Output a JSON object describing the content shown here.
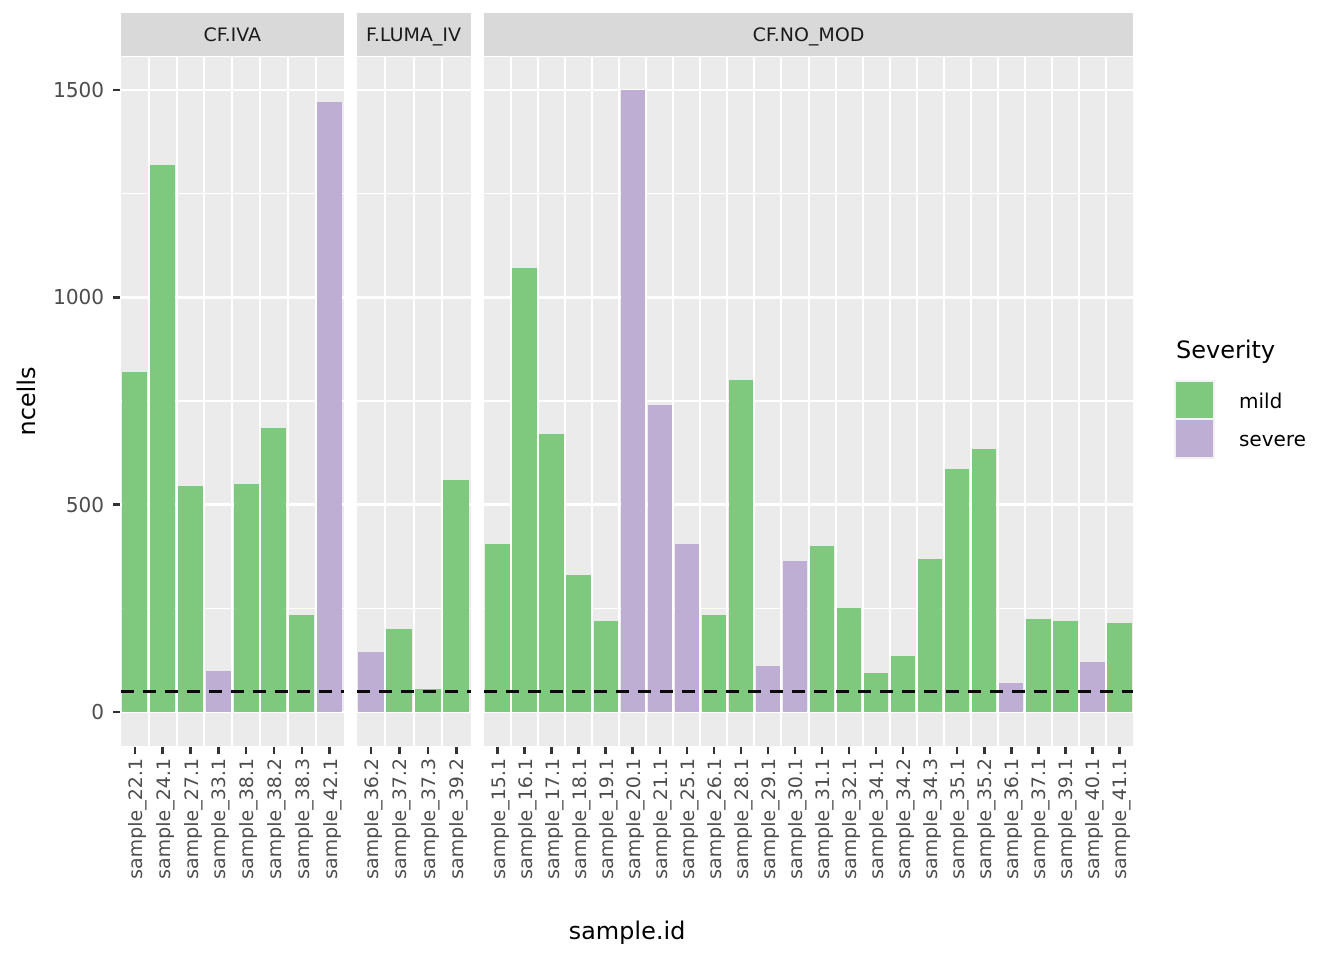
{
  "colors": {
    "mild": "#7FC97F",
    "severe": "#BEAED4",
    "panel_bg": "#EBEBEB",
    "strip_bg": "#D9D9D9",
    "grid": "#FFFFFF",
    "axis_text": "#4D4D4D",
    "tick_mark": "#333333",
    "dashed_line": "#0A0A0A",
    "background": "#FFFFFF"
  },
  "legend": {
    "title": "Severity",
    "items": [
      {
        "label": "mild",
        "color_key": "mild"
      },
      {
        "label": "severe",
        "color_key": "severe"
      }
    ]
  },
  "chart_data": {
    "type": "bar",
    "title": "",
    "xlabel": "sample.id",
    "ylabel": "ncells",
    "y_ticks": [
      0,
      500,
      1000,
      1500
    ],
    "minor_gridlines": [
      250,
      750,
      1250
    ],
    "ylim": [
      -75,
      1575
    ],
    "dashed_hline": 50,
    "legend_title": "Severity",
    "legend_entries": [
      "mild",
      "severe"
    ],
    "facets": [
      {
        "label": "CF.IVA",
        "bars": [
          {
            "x": "sample_22.1",
            "y": 820,
            "severity": "mild"
          },
          {
            "x": "sample_24.1",
            "y": 1320,
            "severity": "mild"
          },
          {
            "x": "sample_27.1",
            "y": 545,
            "severity": "mild"
          },
          {
            "x": "sample_33.1",
            "y": 100,
            "severity": "severe"
          },
          {
            "x": "sample_38.1",
            "y": 550,
            "severity": "mild"
          },
          {
            "x": "sample_38.2",
            "y": 685,
            "severity": "mild"
          },
          {
            "x": "sample_38.3",
            "y": 235,
            "severity": "mild"
          },
          {
            "x": "sample_42.1",
            "y": 1470,
            "severity": "severe"
          }
        ]
      },
      {
        "label": "F.LUMA_IV",
        "bars": [
          {
            "x": "sample_36.2",
            "y": 145,
            "severity": "severe"
          },
          {
            "x": "sample_37.2",
            "y": 200,
            "severity": "mild"
          },
          {
            "x": "sample_37.3",
            "y": 55,
            "severity": "mild"
          },
          {
            "x": "sample_39.2",
            "y": 560,
            "severity": "mild"
          }
        ]
      },
      {
        "label": "CF.NO_MOD",
        "bars": [
          {
            "x": "sample_15.1",
            "y": 405,
            "severity": "mild"
          },
          {
            "x": "sample_16.1",
            "y": 1070,
            "severity": "mild"
          },
          {
            "x": "sample_17.1",
            "y": 670,
            "severity": "mild"
          },
          {
            "x": "sample_18.1",
            "y": 330,
            "severity": "mild"
          },
          {
            "x": "sample_19.1",
            "y": 220,
            "severity": "mild"
          },
          {
            "x": "sample_20.1",
            "y": 1500,
            "severity": "severe"
          },
          {
            "x": "sample_21.1",
            "y": 740,
            "severity": "severe"
          },
          {
            "x": "sample_25.1",
            "y": 405,
            "severity": "severe"
          },
          {
            "x": "sample_26.1",
            "y": 235,
            "severity": "mild"
          },
          {
            "x": "sample_28.1",
            "y": 800,
            "severity": "mild"
          },
          {
            "x": "sample_29.1",
            "y": 110,
            "severity": "severe"
          },
          {
            "x": "sample_30.1",
            "y": 365,
            "severity": "severe"
          },
          {
            "x": "sample_31.1",
            "y": 400,
            "severity": "mild"
          },
          {
            "x": "sample_32.1",
            "y": 250,
            "severity": "mild"
          },
          {
            "x": "sample_34.1",
            "y": 95,
            "severity": "mild"
          },
          {
            "x": "sample_34.2",
            "y": 135,
            "severity": "mild"
          },
          {
            "x": "sample_34.3",
            "y": 370,
            "severity": "mild"
          },
          {
            "x": "sample_35.1",
            "y": 585,
            "severity": "mild"
          },
          {
            "x": "sample_35.2",
            "y": 635,
            "severity": "mild"
          },
          {
            "x": "sample_36.1",
            "y": 70,
            "severity": "severe"
          },
          {
            "x": "sample_37.1",
            "y": 225,
            "severity": "mild"
          },
          {
            "x": "sample_39.1",
            "y": 220,
            "severity": "mild"
          },
          {
            "x": "sample_40.1",
            "y": 120,
            "severity": "severe"
          },
          {
            "x": "sample_41.1",
            "y": 215,
            "severity": "mild"
          }
        ]
      }
    ]
  }
}
